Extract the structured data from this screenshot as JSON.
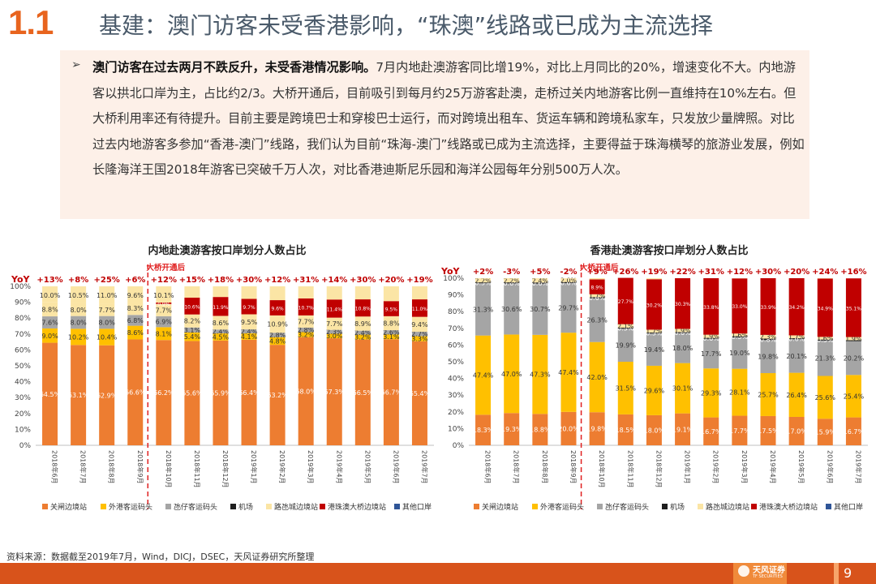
{
  "header": {
    "section_number": "1.1",
    "title": "基建：澳门访客未受香港影响，“珠澳”线路或已成为主流选择"
  },
  "summary": {
    "bullet": "➢",
    "lead": "澳门访客在过去两月不跌反升，未受香港情况影响。",
    "body": "7月内地赴澳游客同比增19%，对比上月同比的20%，增速变化不大。内地游客以拱北口岸为主，占比约2/3。大桥开通后，目前吸引到每月约25万游客赴澳，走桥过关内地游客比例一直维持在10%左右。但大桥利用率还有待提升。目前主要是跨境巴士和穿梭巴士运行，而对跨境出租车、货运车辆和跨境私家车，只发放少量牌照。对比过去内地游客多参加“香港-澳门”线路，我们认为目前“珠海-澳门”线路或已成为主流选择，主要得益于珠海横琴的旅游业发展，例如长隆海洋王国2018年游客已突破千万人次，对比香港迪斯尼乐园和海洋公园每年分别500万人次。"
  },
  "colors": {
    "accent": "#e8641e",
    "s1": "#ed7d31",
    "s2": "#ffc000",
    "s3": "#a5a5a5",
    "s4": "#1f1f1f",
    "s5": "#fbe5a5",
    "s6": "#c00000",
    "s7": "#2f5597",
    "yoy": "#c00000"
  },
  "chart_data": [
    {
      "type": "bar",
      "stacked": true,
      "title": "内地赴澳游客按口岸划分人数占比",
      "yoy_label": "YoY",
      "annotation": "大桥开通后",
      "categories": [
        "2018年6月",
        "2018年7月",
        "2018年8月",
        "2018年9月",
        "2018年10月",
        "2018年11月",
        "2018年12月",
        "2019年1月",
        "2019年2月",
        "2019年3月",
        "2019年4月",
        "2019年5月",
        "2019年6月",
        "2019年7月"
      ],
      "yoy": [
        "+13%",
        "+8%",
        "+25%",
        "+6%",
        "+12%",
        "+15%",
        "+18%",
        "+30%",
        "+12%",
        "+31%",
        "+14%",
        "+30%",
        "+20%",
        "+19%"
      ],
      "ylim": [
        0,
        100
      ],
      "yticks": [
        "0%",
        "10%",
        "20%",
        "30%",
        "40%",
        "50%",
        "60%",
        "70%",
        "80%",
        "90%",
        "100%"
      ],
      "series": [
        {
          "name": "关闸边境站",
          "color_key": "s1",
          "values": [
            64.5,
            63.1,
            62.9,
            66.6,
            66.2,
            65.6,
            65.9,
            66.4,
            63.2,
            68.0,
            67.3,
            66.5,
            66.7,
            65.4
          ],
          "labels": [
            "64.5%",
            "63.1%",
            "62.9%",
            "66.6%",
            "66.2%",
            "65.6%",
            "65.9%",
            "66.4%",
            "63.2%",
            "68.0%",
            "67.3%",
            "66.5%",
            "66.7%",
            "65.4%"
          ]
        },
        {
          "name": "外港客运码头",
          "color_key": "s2",
          "values": [
            9.0,
            10.2,
            10.4,
            8.6,
            8.1,
            5.4,
            4.5,
            4.1,
            4.8,
            3.2,
            3.0,
            3.2,
            3.1,
            3.3
          ],
          "labels": [
            "9.0%",
            "10.2%",
            "10.4%",
            "8.6%",
            "8.1%",
            "5.4%",
            "4.5%",
            "4.1%",
            "4.8%",
            "3.2%",
            "3.0%",
            "3.2%",
            "3.1%",
            "3.3%"
          ]
        },
        {
          "name": "氹仔客运码头",
          "color_key": "s3",
          "values": [
            7.6,
            8.0,
            8.0,
            6.8,
            6.9,
            3.1,
            2.4,
            2.4,
            2.8,
            2.8,
            2.3,
            2.4,
            2.6,
            2.7
          ],
          "labels": [
            "7.6%",
            "8.0%",
            "8.0%",
            "6.8%",
            "6.9%",
            "3.1%",
            "2.4%",
            "2.4%",
            "2.8%",
            "2.8%",
            "2.3%",
            "2.4%",
            "2.6%",
            "2.7%"
          ]
        },
        {
          "name": "机场",
          "color_key": "s4",
          "values": [
            0.0,
            0.0,
            0.0,
            0.0,
            0.0,
            0.0,
            0.0,
            0.0,
            0.0,
            0.0,
            0.0,
            0.0,
            0.0,
            0.0
          ],
          "labels": [
            "",
            "",
            "",
            "",
            "",
            "",
            "",
            "",
            "",
            "",
            "",
            "",
            "",
            ""
          ]
        },
        {
          "name": "路氹城边境站",
          "color_key": "s5",
          "values": [
            8.8,
            8.0,
            7.7,
            8.3,
            7.7,
            8.2,
            8.6,
            9.5,
            10.9,
            7.7,
            7.7,
            8.9,
            8.8,
            9.4
          ],
          "labels": [
            "8.8%",
            "8.0%",
            "7.7%",
            "8.3%",
            "7.7%",
            "8.2%",
            "8.6%",
            "9.5%",
            "10.9%",
            "7.7%",
            "7.7%",
            "8.9%",
            "8.8%",
            "9.4%"
          ]
        },
        {
          "name": "港珠澳大桥边境站",
          "color_key": "s6",
          "values": [
            0.0,
            0.0,
            0.0,
            0.0,
            0.9,
            10.6,
            11.9,
            9.7,
            9.6,
            10.7,
            11.4,
            10.8,
            9.5,
            11.0
          ],
          "labels": [
            "",
            "",
            "",
            "",
            "0.9%",
            "10.6%",
            "11.9%",
            "9.7%",
            "9.6%",
            "10.7%",
            "11.4%",
            "10.8%",
            "9.5%",
            "11.0%"
          ]
        },
        {
          "name": "其他口岸",
          "color_key": "s7",
          "values": [
            0.0,
            0.0,
            0.0,
            0.0,
            0.0,
            0.0,
            0.0,
            0.0,
            0.0,
            0.0,
            0.0,
            0.0,
            0.0,
            0.0
          ],
          "labels": [
            "",
            "",
            "",
            "",
            "",
            "",
            "",
            "",
            "",
            "",
            "",
            "",
            "",
            ""
          ]
        }
      ],
      "top_labels": [
        "10.0%",
        "10.5%",
        "11.0%",
        "9.6%",
        "10.1%",
        "",
        "",
        "",
        "",
        "",
        "",
        "",
        "",
        ""
      ]
    },
    {
      "type": "bar",
      "stacked": true,
      "title": "香港赴澳游客按口岸划分人数占比",
      "yoy_label": "YoY",
      "annotation": "大桥开通后",
      "categories": [
        "2018年6月",
        "2018年7月",
        "2018年8月",
        "2018年9月",
        "2018年10月",
        "2018年11月",
        "2018年12月",
        "2019年1月",
        "2019年2月",
        "2019年3月",
        "2019年4月",
        "2019年5月",
        "2019年6月",
        "2019年7月"
      ],
      "yoy": [
        "+2%",
        "-3%",
        "+5%",
        "-2%",
        "+9%",
        "+26%",
        "+19%",
        "+22%",
        "+31%",
        "+12%",
        "+30%",
        "+20%",
        "+24%",
        "+16%"
      ],
      "ylim": [
        0,
        100
      ],
      "yticks": [
        "0%",
        "10%",
        "20%",
        "30%",
        "40%",
        "50%",
        "60%",
        "70%",
        "80%",
        "90%",
        "100%"
      ],
      "series": [
        {
          "name": "关闸边境站",
          "color_key": "s1",
          "values": [
            18.3,
            19.3,
            18.8,
            20.0,
            19.8,
            18.5,
            18.0,
            19.1,
            16.7,
            17.7,
            17.5,
            17.0,
            15.9,
            16.7
          ],
          "labels": [
            "18.3%",
            "19.3%",
            "18.8%",
            "20.0%",
            "19.8%",
            "18.5%",
            "18.0%",
            "19.1%",
            "16.7%",
            "17.7%",
            "17.5%",
            "17.0%",
            "15.9%",
            "16.7%"
          ]
        },
        {
          "name": "外港客运码头",
          "color_key": "s2",
          "values": [
            47.4,
            47.0,
            47.3,
            47.4,
            42.0,
            31.5,
            29.6,
            30.1,
            29.3,
            28.1,
            25.7,
            26.4,
            25.6,
            25.4
          ],
          "labels": [
            "47.4%",
            "47.0%",
            "47.3%",
            "47.4%",
            "42.0%",
            "31.5%",
            "29.6%",
            "30.1%",
            "29.3%",
            "28.1%",
            "25.7%",
            "26.4%",
            "25.6%",
            "25.4%"
          ]
        },
        {
          "name": "氹仔客运码头",
          "color_key": "s3",
          "values": [
            31.3,
            30.6,
            30.7,
            29.7,
            26.3,
            19.9,
            19.4,
            18.0,
            17.7,
            19.0,
            19.8,
            20.1,
            21.3,
            20.2
          ],
          "labels": [
            "31.3%",
            "30.6%",
            "30.7%",
            "29.7%",
            "26.3%",
            "19.9%",
            "19.4%",
            "18.0%",
            "17.7%",
            "19.0%",
            "19.8%",
            "20.1%",
            "21.3%",
            "20.2%"
          ]
        },
        {
          "name": "机场",
          "color_key": "s4",
          "values": [
            0.5,
            0.6,
            0.6,
            0.6,
            0.6,
            0.5,
            0.5,
            0.6,
            0.6,
            0.5,
            0.8,
            0.6,
            0.5,
            0.6
          ],
          "labels": [
            "0.5%",
            "0.6%",
            "0.6%",
            "0.6%",
            "0.6%",
            "0.5%",
            "0.5%",
            "0.6%",
            "0.6%",
            "0.5%",
            "0.8%",
            "0.6%",
            "0.5%",
            ""
          ]
        },
        {
          "name": "路氹城边境站",
          "color_key": "s5",
          "values": [
            2.2,
            2.2,
            2.4,
            2.0,
            1.7,
            2.1,
            1.7,
            1.9,
            1.9,
            1.6,
            2.3,
            1.7,
            1.6,
            1.9
          ],
          "labels": [
            "2.2%",
            "2.2%",
            "2.4%",
            "2.0%",
            "1.7%",
            "2.1%",
            "1.7%",
            "1.9%",
            "1.9%",
            "1.6%",
            "2.3%",
            "1.7%",
            "1.6%",
            "1.9%"
          ]
        },
        {
          "name": "港珠澳大桥边境站",
          "color_key": "s6",
          "values": [
            0.0,
            0.0,
            0.0,
            0.0,
            8.9,
            27.7,
            30.2,
            30.3,
            33.8,
            33.0,
            33.9,
            34.2,
            34.9,
            35.1
          ],
          "labels": [
            "",
            "",
            "",
            "",
            "8.9%",
            "27.7%",
            "30.2%",
            "30.3%",
            "33.8%",
            "33.0%",
            "33.9%",
            "34.2%",
            "34.9%",
            "35.1%"
          ]
        },
        {
          "name": "其他口岸",
          "color_key": "s7",
          "values": [
            0.0,
            0.0,
            0.0,
            0.0,
            0.0,
            0.0,
            0.0,
            0.0,
            0.0,
            0.0,
            0.0,
            0.0,
            0.0,
            0.0
          ],
          "labels": [
            "",
            "",
            "",
            "",
            "",
            "",
            "",
            "",
            "",
            "",
            "",
            "",
            "",
            ""
          ]
        }
      ]
    }
  ],
  "footer": {
    "source": "资料来源：数据截至2019年7月，Wind，DICJ，DSEC，天风证券研究所整理",
    "brand": "天风证券",
    "brand_sub": "TF SECURITIES",
    "page": "9"
  }
}
